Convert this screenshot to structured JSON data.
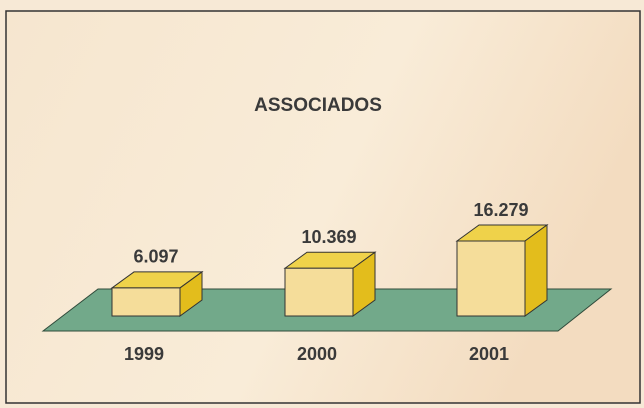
{
  "chart_data": {
    "type": "bar3d",
    "title": "ASSOCIADOS",
    "categories": [
      "1999",
      "2000",
      "2001"
    ],
    "values": [
      6097,
      10369,
      16279
    ],
    "value_labels": [
      "6.097",
      "10.369",
      "16.279"
    ],
    "color": "#f5dd9a"
  }
}
